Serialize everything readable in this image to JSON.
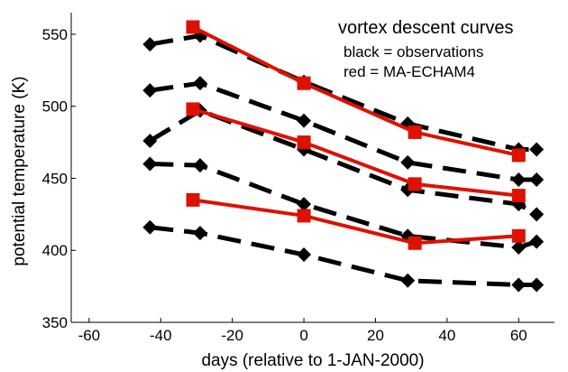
{
  "chart_data": {
    "type": "line",
    "title": "",
    "xlabel": "days (relative to 1-JAN-2000)",
    "ylabel": "potential temperature (K)",
    "xlim": [
      -65,
      70
    ],
    "ylim": [
      350,
      565
    ],
    "xticks": [
      -60,
      -40,
      -20,
      0,
      20,
      40,
      60
    ],
    "yticks": [
      350,
      400,
      450,
      500,
      550
    ],
    "grid": false,
    "annotations": {
      "title": "vortex descent curves",
      "line1": "black = observations",
      "line2": "red = MA-ECHAM4"
    },
    "colors": {
      "observations": "#000000",
      "model": "#dd1100",
      "axes": "#000000"
    },
    "series": [
      {
        "group": "observations",
        "color": "#000000",
        "style": "dashed",
        "marker": "diamond",
        "x": [
          -43,
          -29,
          0,
          29,
          60,
          65
        ],
        "y": [
          543,
          549,
          517,
          488,
          470,
          470
        ]
      },
      {
        "group": "observations",
        "color": "#000000",
        "style": "dashed",
        "marker": "diamond",
        "x": [
          -43,
          -29,
          0,
          29,
          60,
          65
        ],
        "y": [
          511,
          516,
          490,
          461,
          449,
          449
        ]
      },
      {
        "group": "observations",
        "color": "#000000",
        "style": "dashed",
        "marker": "diamond",
        "x": [
          -43,
          -29,
          0,
          29,
          60,
          65
        ],
        "y": [
          476,
          497,
          470,
          442,
          432,
          425
        ]
      },
      {
        "group": "observations",
        "color": "#000000",
        "style": "dashed",
        "marker": "diamond",
        "x": [
          -43,
          -29,
          0,
          29,
          60,
          65
        ],
        "y": [
          460,
          459,
          432,
          410,
          402,
          406
        ]
      },
      {
        "group": "observations",
        "color": "#000000",
        "style": "dashed",
        "marker": "diamond",
        "x": [
          -43,
          -29,
          0,
          29,
          60,
          65
        ],
        "y": [
          416,
          412,
          397,
          379,
          376,
          376
        ]
      },
      {
        "group": "model",
        "color": "#dd1100",
        "style": "solid",
        "marker": "square",
        "x": [
          -31,
          0,
          31,
          60
        ],
        "y": [
          555,
          516,
          482,
          466
        ]
      },
      {
        "group": "model",
        "color": "#dd1100",
        "style": "solid",
        "marker": "square",
        "x": [
          -31,
          0,
          31,
          60
        ],
        "y": [
          498,
          475,
          446,
          438
        ]
      },
      {
        "group": "model",
        "color": "#dd1100",
        "style": "solid",
        "marker": "square",
        "x": [
          -31,
          0,
          31,
          60
        ],
        "y": [
          435,
          424,
          405,
          410
        ]
      }
    ]
  }
}
